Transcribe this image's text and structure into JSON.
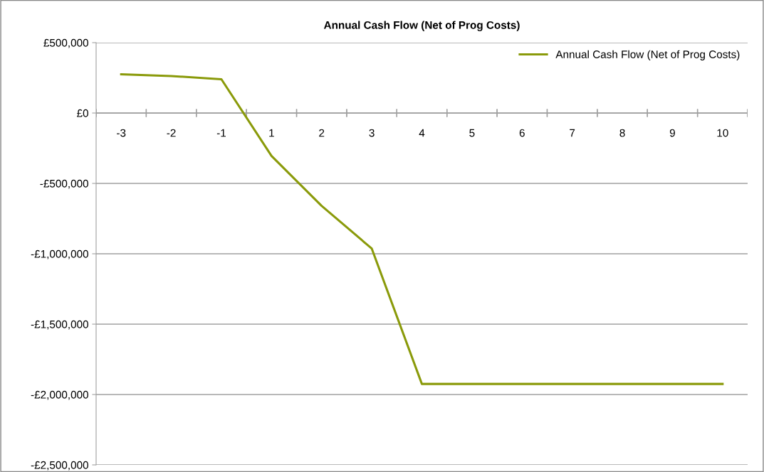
{
  "chart_data": {
    "type": "line",
    "title": "Annual Cash Flow (Net of Prog Costs)",
    "categories": [
      "-3",
      "-2",
      "-1",
      "1",
      "2",
      "3",
      "4",
      "5",
      "6",
      "7",
      "8",
      "9",
      "10"
    ],
    "series": [
      {
        "name": "Annual Cash Flow (Net of Prog Costs)",
        "color": "#8a9a0a",
        "values": [
          275000,
          263000,
          240000,
          -305000,
          -660000,
          -963000,
          -1925000,
          -1925000,
          -1925000,
          -1925000,
          -1925000,
          -1925000,
          -1925000
        ]
      }
    ],
    "ylim": [
      -2500000,
      500000
    ],
    "yticks": [
      {
        "value": -2500000,
        "label": "-£2,500,000"
      },
      {
        "value": -2000000,
        "label": "-£2,000,000"
      },
      {
        "value": -1500000,
        "label": "-£1,500,000"
      },
      {
        "value": -1000000,
        "label": "-£1,000,000"
      },
      {
        "value": -500000,
        "label": "-£500,000"
      },
      {
        "value": 0,
        "label": "£0"
      },
      {
        "value": 500000,
        "label": "£500,000"
      }
    ],
    "grid": "y",
    "legend": "top right",
    "marker": "none",
    "line_style": "solid"
  }
}
